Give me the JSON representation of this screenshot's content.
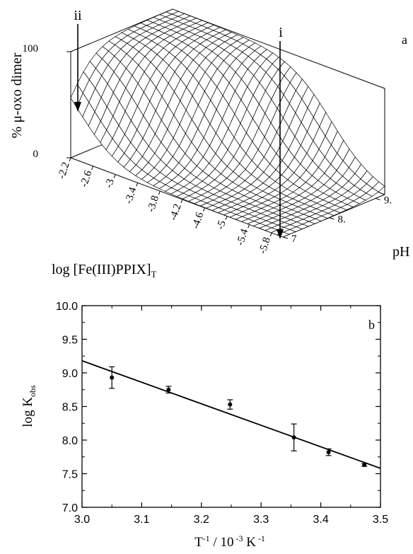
{
  "chart_data": [
    {
      "panel": "a",
      "type": "surface",
      "zlabel": "% μ-oxo dimer",
      "xlabel": "log [Fe(III)PPIX]",
      "xlabel_sub": "T",
      "ylabel": "pH",
      "x_ticks": [
        "-2.2",
        "-2.6",
        "-3",
        "-3.4",
        "-3.8",
        "-4.2",
        "-4.6",
        "-5",
        "-5.4",
        "-5.8"
      ],
      "y_ticks": [
        "7",
        "8.",
        "9."
      ],
      "z_ticks": [
        "0",
        "100"
      ],
      "annotations": [
        {
          "label": "ii",
          "x": -2.4,
          "y": 7,
          "z": 100
        },
        {
          "label": "i",
          "x": -5.8,
          "y": 7,
          "z": 0
        }
      ]
    },
    {
      "panel": "b",
      "type": "scatter",
      "xlabel": "T",
      "xlabel_exp1": "-1",
      "xlabel_mid": " / 10",
      "xlabel_exp2": " -3",
      "xlabel_unit": " K",
      "xlabel_exp3": " -1",
      "ylabel": "log K",
      "ylabel_sub": "obs",
      "xlim": [
        3.0,
        3.5
      ],
      "ylim": [
        7.0,
        10.0
      ],
      "x_ticks": [
        "3.0",
        "3.1",
        "3.2",
        "3.3",
        "3.4",
        "3.5"
      ],
      "y_ticks": [
        "7.0",
        "7.5",
        "8.0",
        "8.5",
        "9.0",
        "9.5",
        "10.0"
      ],
      "grid": false,
      "points": [
        {
          "x": 3.05,
          "y": 8.93,
          "err": 0.16
        },
        {
          "x": 3.145,
          "y": 8.75,
          "err": 0.05
        },
        {
          "x": 3.248,
          "y": 8.53,
          "err": 0.07
        },
        {
          "x": 3.355,
          "y": 8.04,
          "err": 0.2
        },
        {
          "x": 3.413,
          "y": 7.82,
          "err": 0.05
        },
        {
          "x": 3.473,
          "y": 7.63,
          "err": 0.02
        }
      ],
      "fit_line": {
        "x": [
          3.0,
          3.5
        ],
        "y": [
          9.18,
          7.58
        ]
      }
    }
  ],
  "panel_a_label": "a",
  "panel_b_label": "b"
}
